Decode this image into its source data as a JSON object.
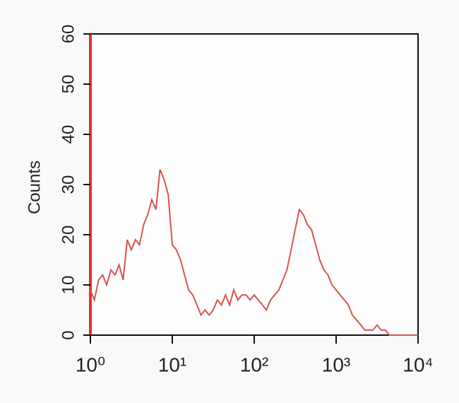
{
  "chart_data": {
    "type": "line",
    "ylabel": "Counts",
    "x": [
      1,
      1.12,
      1.26,
      1.41,
      1.58,
      1.78,
      2.0,
      2.24,
      2.51,
      2.82,
      3.16,
      3.55,
      3.98,
      4.47,
      5.01,
      5.62,
      6.31,
      7.08,
      7.94,
      8.91,
      10,
      11.2,
      12.6,
      14.1,
      15.8,
      17.8,
      20.0,
      22.4,
      25.1,
      28.2,
      31.6,
      35.5,
      39.8,
      44.7,
      50.1,
      56.2,
      63.1,
      70.8,
      79.4,
      89.1,
      100,
      112,
      126,
      141,
      158,
      178,
      200,
      224,
      251,
      282,
      316,
      355,
      398,
      447,
      501,
      562,
      631,
      708,
      794,
      891,
      1000,
      1120,
      1260,
      1410,
      1580,
      1780,
      2000,
      2240,
      2510,
      2820,
      3160,
      3550,
      3980,
      4470,
      5010,
      5620,
      6310,
      7080,
      7940,
      8910,
      10000
    ],
    "series": [
      {
        "color": "#d9534f",
        "values": [
          9,
          7,
          11,
          12,
          10,
          13,
          12,
          14,
          11,
          19,
          17,
          19,
          18,
          22,
          24,
          27,
          25,
          33,
          31,
          28,
          18,
          17,
          15,
          12,
          9,
          8,
          6,
          4,
          5,
          4,
          5,
          7,
          6,
          8,
          6,
          9,
          7,
          8,
          8,
          7,
          8,
          7,
          6,
          5,
          7,
          8,
          9,
          11,
          13,
          17,
          21,
          25,
          24,
          22,
          21,
          18,
          15,
          13,
          12,
          10,
          9,
          8,
          7,
          6,
          4,
          3,
          2,
          1,
          1,
          1,
          2,
          1,
          1,
          0,
          0,
          0,
          0,
          0,
          0,
          0,
          0
        ]
      }
    ],
    "xscale": "log",
    "xlim": [
      1,
      10000
    ],
    "xticks": [
      {
        "value": 1,
        "label": "10⁰"
      },
      {
        "value": 10,
        "label": "10¹"
      },
      {
        "value": 100,
        "label": "10²"
      },
      {
        "value": 1000,
        "label": "10³"
      },
      {
        "value": 10000,
        "label": "10⁴"
      }
    ],
    "ylim": [
      0,
      60
    ],
    "yticks": [
      0,
      10,
      20,
      30,
      40,
      50,
      60
    ]
  }
}
